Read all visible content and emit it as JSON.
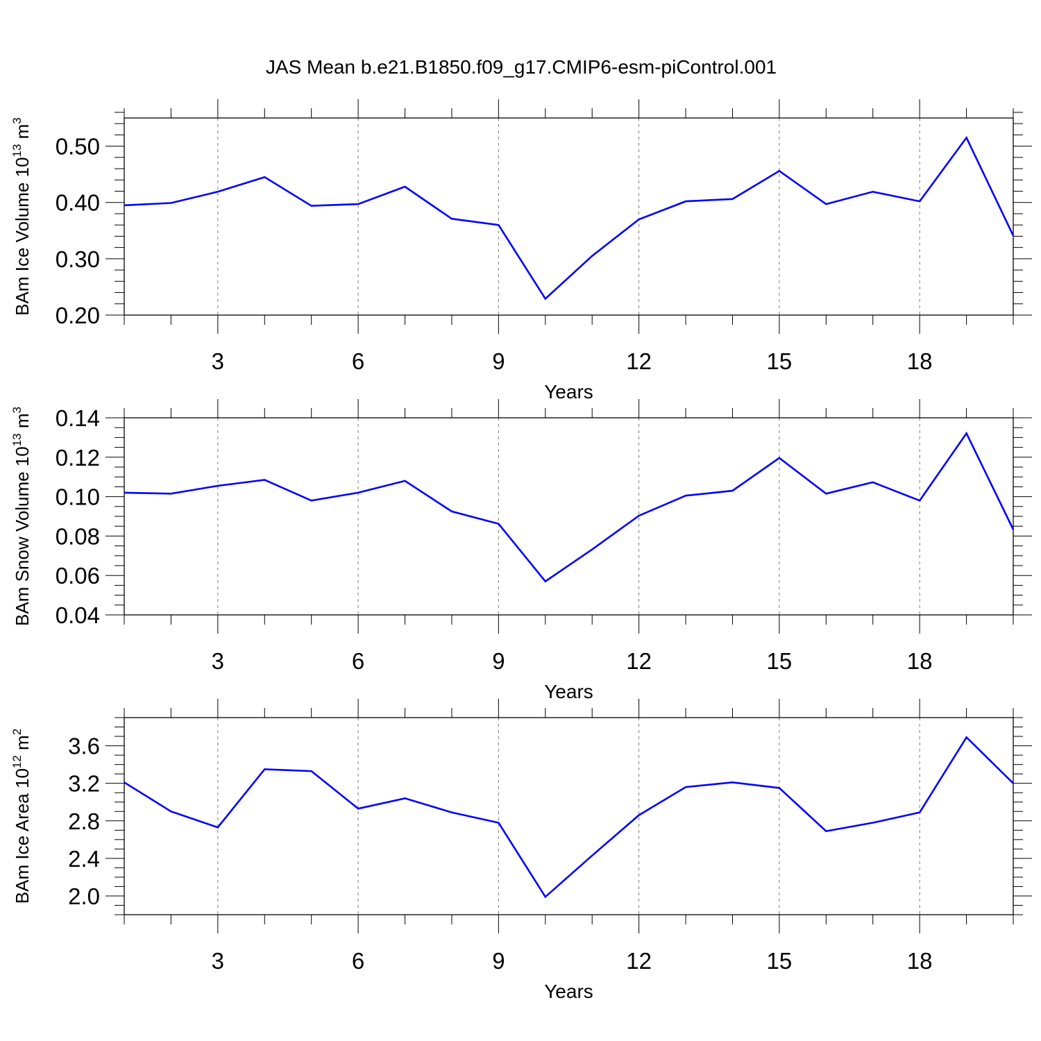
{
  "title": "JAS Mean b.e21.B1850.f09_g17.CMIP6-esm-piControl.001",
  "colors": {
    "line": "#0000ff",
    "frame": "#000000",
    "grid": "#777777"
  },
  "chart_data": [
    {
      "type": "line",
      "ylabel_main": "BAm Ice Volume 10",
      "ylabel_exp": "13",
      "ylabel_unit": " m",
      "ylabel_unit_exp": "3",
      "xlabel": "Years",
      "xlim": [
        1,
        20
      ],
      "ylim": [
        0.2,
        0.55
      ],
      "yticks": [
        0.2,
        0.3,
        0.4,
        0.5
      ],
      "ytick_labels": [
        "0.20",
        "0.30",
        "0.40",
        "0.50"
      ],
      "yminor_step": 0.02,
      "xticks": [
        3,
        6,
        9,
        12,
        15,
        18
      ],
      "xtick_labels": [
        "3",
        "6",
        "9",
        "12",
        "15",
        "18"
      ],
      "x": [
        1,
        2,
        3,
        4,
        5,
        6,
        7,
        8,
        9,
        10,
        11,
        12,
        13,
        14,
        15,
        16,
        17,
        18,
        19,
        20
      ],
      "series": [
        {
          "name": "BAm Ice Volume",
          "values": [
            0.395,
            0.399,
            0.419,
            0.445,
            0.394,
            0.397,
            0.428,
            0.371,
            0.36,
            0.229,
            0.305,
            0.37,
            0.402,
            0.406,
            0.456,
            0.397,
            0.419,
            0.402,
            0.515,
            0.341
          ]
        }
      ]
    },
    {
      "type": "line",
      "ylabel_main": "BAm Snow Volume 10",
      "ylabel_exp": "13",
      "ylabel_unit": " m",
      "ylabel_unit_exp": "3",
      "xlabel": "Years",
      "xlim": [
        1,
        20
      ],
      "ylim": [
        0.04,
        0.14
      ],
      "yticks": [
        0.04,
        0.06,
        0.08,
        0.1,
        0.12,
        0.14
      ],
      "ytick_labels": [
        "0.04",
        "0.06",
        "0.08",
        "0.10",
        "0.12",
        "0.14"
      ],
      "yminor_step": 0.005,
      "xticks": [
        3,
        6,
        9,
        12,
        15,
        18
      ],
      "xtick_labels": [
        "3",
        "6",
        "9",
        "12",
        "15",
        "18"
      ],
      "x": [
        1,
        2,
        3,
        4,
        5,
        6,
        7,
        8,
        9,
        10,
        11,
        12,
        13,
        14,
        15,
        16,
        17,
        18,
        19,
        20
      ],
      "series": [
        {
          "name": "BAm Snow Volume",
          "values": [
            0.102,
            0.1015,
            0.1055,
            0.1085,
            0.098,
            0.102,
            0.108,
            0.0925,
            0.0862,
            0.057,
            0.0732,
            0.0903,
            0.1005,
            0.103,
            0.1196,
            0.1015,
            0.1073,
            0.098,
            0.1321,
            0.0833
          ]
        }
      ]
    },
    {
      "type": "line",
      "ylabel_main": "BAm Ice Area 10",
      "ylabel_exp": "12",
      "ylabel_unit": " m",
      "ylabel_unit_exp": "2",
      "xlabel": "Years",
      "xlim": [
        1,
        20
      ],
      "ylim": [
        1.8,
        3.9
      ],
      "yticks": [
        2.0,
        2.4,
        2.8,
        3.2,
        3.6
      ],
      "ytick_labels": [
        "2.0",
        "2.4",
        "2.8",
        "3.2",
        "3.6"
      ],
      "yminor_step": 0.1,
      "xticks": [
        3,
        6,
        9,
        12,
        15,
        18
      ],
      "xtick_labels": [
        "3",
        "6",
        "9",
        "12",
        "15",
        "18"
      ],
      "x": [
        1,
        2,
        3,
        4,
        5,
        6,
        7,
        8,
        9,
        10,
        11,
        12,
        13,
        14,
        15,
        16,
        17,
        18,
        19,
        20
      ],
      "series": [
        {
          "name": "BAm Ice Area",
          "values": [
            3.21,
            2.9,
            2.73,
            3.35,
            3.33,
            2.93,
            3.04,
            2.89,
            2.78,
            1.99,
            2.43,
            2.86,
            3.16,
            3.21,
            3.15,
            2.69,
            2.78,
            2.89,
            3.69,
            3.2
          ]
        }
      ]
    }
  ]
}
